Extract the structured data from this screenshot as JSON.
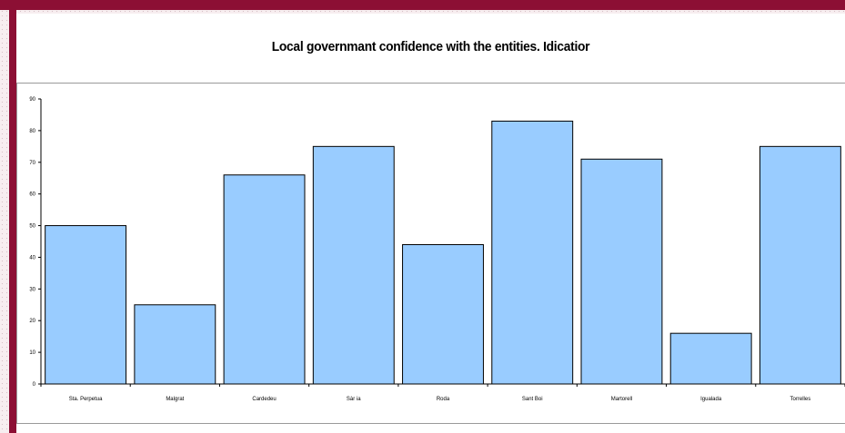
{
  "colors": {
    "frame": "#8c0f34",
    "bar_fill": "#99ccff",
    "bar_stroke": "#000000",
    "background": "#ffffff"
  },
  "chart_data": {
    "type": "bar",
    "title": "Local governmant confidence with the entities. Idicatior",
    "xlabel": "",
    "ylabel": "",
    "categories": [
      "Sta. Perpetua",
      "Malgrat",
      "Cardedeu",
      "Sàr ia",
      "Roda",
      "Sant Boi",
      "Martorell",
      "Igualada",
      "Torrelles"
    ],
    "values": [
      50,
      25,
      66,
      75,
      44,
      83,
      71,
      16,
      75
    ],
    "ylim": [
      0,
      90
    ],
    "yticks": [
      0,
      10,
      20,
      30,
      40,
      50,
      60,
      70,
      80,
      90
    ],
    "grid": false,
    "legend": "none"
  }
}
